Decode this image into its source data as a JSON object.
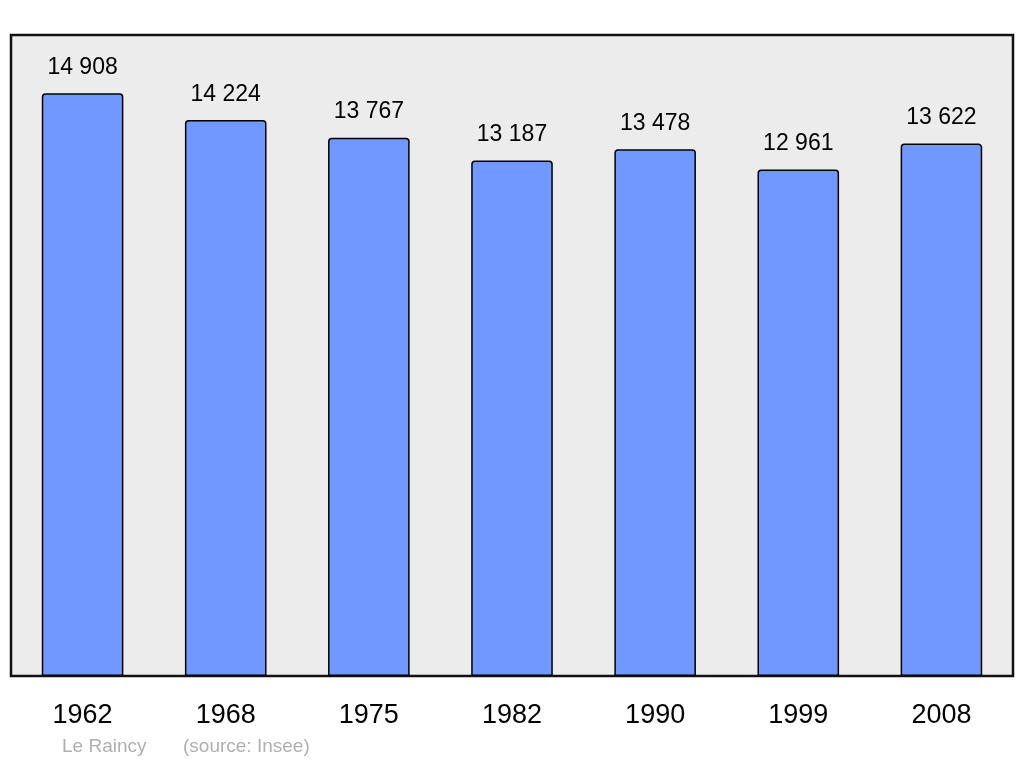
{
  "chart_data": {
    "type": "bar",
    "categories": [
      "1962",
      "1968",
      "1975",
      "1982",
      "1990",
      "1999",
      "2008"
    ],
    "values": [
      14908,
      14224,
      13767,
      13187,
      13478,
      12961,
      13622
    ],
    "value_labels": [
      "14 908",
      "14 224",
      "13 767",
      "13 187",
      "13 478",
      "12 961",
      "13 622"
    ],
    "color": "#7098ff",
    "grid": false,
    "tick_labels": "x",
    "annotations": [
      "Le Raincy",
      "(source: Insee)"
    ]
  }
}
